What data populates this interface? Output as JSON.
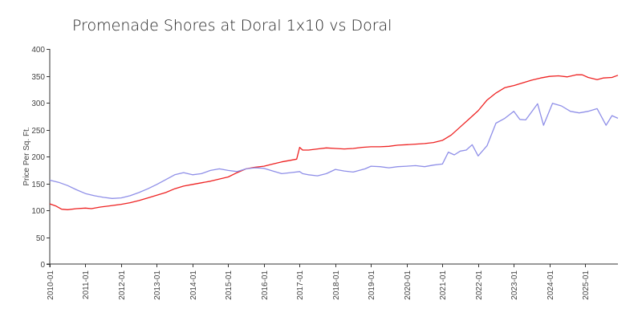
{
  "chart_data": {
    "type": "line",
    "title": "Promenade Shores at Doral 1x10 vs Doral",
    "ylabel": "Price Per Sq. Ft.",
    "xlabel": "",
    "ylim": [
      0,
      400
    ],
    "yticks": [
      0,
      50,
      100,
      150,
      200,
      250,
      300,
      350,
      400
    ],
    "xlim": [
      "2010-01",
      "2025-12"
    ],
    "xticks": [
      "2010-01",
      "2011-01",
      "2012-01",
      "2013-01",
      "2014-01",
      "2015-01",
      "2016-01",
      "2017-01",
      "2018-01",
      "2019-01",
      "2020-01",
      "2021-01",
      "2022-01",
      "2023-01",
      "2024-01",
      "2025-01"
    ],
    "grid": false,
    "legend": "none",
    "series": [
      {
        "color": "#ee2222",
        "points": [
          [
            "2010-01",
            112
          ],
          [
            "2010-03",
            108
          ],
          [
            "2010-05",
            102
          ],
          [
            "2010-07",
            101
          ],
          [
            "2010-10",
            103
          ],
          [
            "2011-01",
            104
          ],
          [
            "2011-03",
            103
          ],
          [
            "2011-06",
            106
          ],
          [
            "2011-09",
            108
          ],
          [
            "2012-01",
            111
          ],
          [
            "2012-04",
            114
          ],
          [
            "2012-07",
            118
          ],
          [
            "2012-10",
            123
          ],
          [
            "2013-01",
            128
          ],
          [
            "2013-04",
            133
          ],
          [
            "2013-07",
            140
          ],
          [
            "2013-10",
            145
          ],
          [
            "2014-01",
            148
          ],
          [
            "2014-04",
            151
          ],
          [
            "2014-07",
            154
          ],
          [
            "2014-10",
            158
          ],
          [
            "2015-01",
            162
          ],
          [
            "2015-04",
            170
          ],
          [
            "2015-07",
            177
          ],
          [
            "2015-10",
            180
          ],
          [
            "2016-01",
            182
          ],
          [
            "2016-04",
            186
          ],
          [
            "2016-07",
            190
          ],
          [
            "2016-10",
            193
          ],
          [
            "2016-12",
            195
          ],
          [
            "2017-01",
            217
          ],
          [
            "2017-02",
            212
          ],
          [
            "2017-04",
            212
          ],
          [
            "2017-07",
            214
          ],
          [
            "2017-10",
            216
          ],
          [
            "2018-01",
            215
          ],
          [
            "2018-04",
            214
          ],
          [
            "2018-07",
            215
          ],
          [
            "2018-10",
            217
          ],
          [
            "2019-01",
            218
          ],
          [
            "2019-04",
            218
          ],
          [
            "2019-07",
            219
          ],
          [
            "2019-10",
            221
          ],
          [
            "2020-01",
            222
          ],
          [
            "2020-04",
            223
          ],
          [
            "2020-07",
            224
          ],
          [
            "2020-10",
            226
          ],
          [
            "2021-01",
            230
          ],
          [
            "2021-04",
            240
          ],
          [
            "2021-07",
            255
          ],
          [
            "2021-10",
            270
          ],
          [
            "2022-01",
            285
          ],
          [
            "2022-04",
            305
          ],
          [
            "2022-07",
            318
          ],
          [
            "2022-10",
            328
          ],
          [
            "2023-01",
            332
          ],
          [
            "2023-04",
            337
          ],
          [
            "2023-07",
            342
          ],
          [
            "2023-10",
            346
          ],
          [
            "2024-01",
            349
          ],
          [
            "2024-04",
            350
          ],
          [
            "2024-07",
            348
          ],
          [
            "2024-10",
            352
          ],
          [
            "2024-12",
            352
          ],
          [
            "2025-02",
            347
          ],
          [
            "2025-05",
            343
          ],
          [
            "2025-07",
            346
          ],
          [
            "2025-10",
            347
          ],
          [
            "2025-12",
            351
          ]
        ]
      },
      {
        "color": "#8f8fe8",
        "points": [
          [
            "2010-01",
            156
          ],
          [
            "2010-04",
            152
          ],
          [
            "2010-07",
            146
          ],
          [
            "2010-10",
            138
          ],
          [
            "2011-01",
            131
          ],
          [
            "2011-04",
            127
          ],
          [
            "2011-07",
            124
          ],
          [
            "2011-10",
            122
          ],
          [
            "2012-01",
            123
          ],
          [
            "2012-04",
            127
          ],
          [
            "2012-07",
            133
          ],
          [
            "2012-10",
            140
          ],
          [
            "2013-01",
            148
          ],
          [
            "2013-04",
            157
          ],
          [
            "2013-07",
            166
          ],
          [
            "2013-10",
            170
          ],
          [
            "2014-01",
            166
          ],
          [
            "2014-04",
            168
          ],
          [
            "2014-07",
            174
          ],
          [
            "2014-10",
            177
          ],
          [
            "2015-01",
            174
          ],
          [
            "2015-04",
            172
          ],
          [
            "2015-07",
            177
          ],
          [
            "2015-10",
            179
          ],
          [
            "2016-01",
            178
          ],
          [
            "2016-04",
            173
          ],
          [
            "2016-07",
            168
          ],
          [
            "2016-10",
            170
          ],
          [
            "2017-01",
            172
          ],
          [
            "2017-02",
            168
          ],
          [
            "2017-04",
            166
          ],
          [
            "2017-07",
            164
          ],
          [
            "2017-10",
            168
          ],
          [
            "2018-01",
            176
          ],
          [
            "2018-04",
            173
          ],
          [
            "2018-07",
            171
          ],
          [
            "2018-09",
            174
          ],
          [
            "2018-11",
            177
          ],
          [
            "2019-01",
            182
          ],
          [
            "2019-04",
            181
          ],
          [
            "2019-07",
            179
          ],
          [
            "2019-10",
            181
          ],
          [
            "2020-01",
            182
          ],
          [
            "2020-04",
            183
          ],
          [
            "2020-07",
            181
          ],
          [
            "2020-10",
            184
          ],
          [
            "2021-01",
            186
          ],
          [
            "2021-03",
            208
          ],
          [
            "2021-05",
            203
          ],
          [
            "2021-07",
            210
          ],
          [
            "2021-09",
            212
          ],
          [
            "2021-11",
            222
          ],
          [
            "2022-01",
            201
          ],
          [
            "2022-04",
            220
          ],
          [
            "2022-07",
            262
          ],
          [
            "2022-10",
            271
          ],
          [
            "2023-01",
            284
          ],
          [
            "2023-03",
            269
          ],
          [
            "2023-05",
            268
          ],
          [
            "2023-07",
            283
          ],
          [
            "2023-09",
            298
          ],
          [
            "2023-11",
            258
          ],
          [
            "2024-02",
            299
          ],
          [
            "2024-05",
            294
          ],
          [
            "2024-08",
            284
          ],
          [
            "2024-11",
            281
          ],
          [
            "2025-02",
            284
          ],
          [
            "2025-05",
            289
          ],
          [
            "2025-08",
            258
          ],
          [
            "2025-10",
            276
          ],
          [
            "2025-12",
            271
          ]
        ]
      }
    ]
  }
}
